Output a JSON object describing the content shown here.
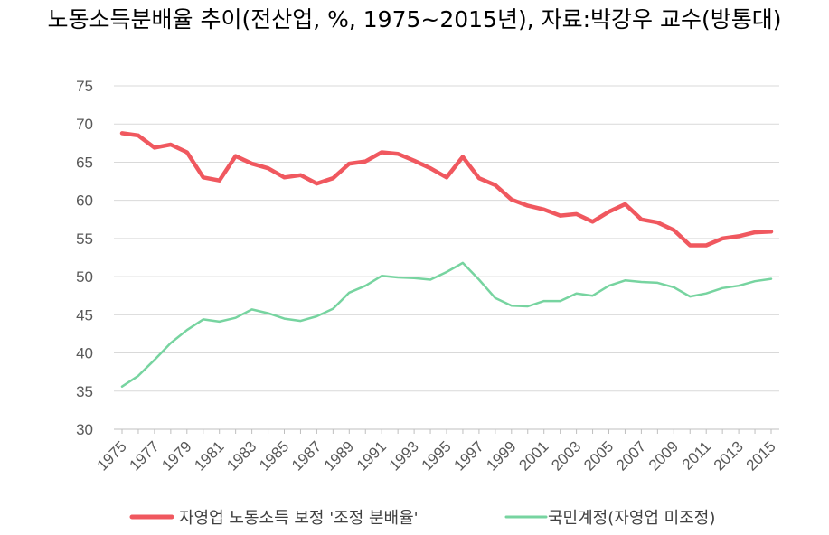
{
  "chart_data": {
    "type": "line",
    "title": "노동소득분배율 추이(전산업, %, 1975~2015년), 자료:박강우 교수(방통대)",
    "xlabel": "",
    "ylabel": "",
    "ylim": [
      30,
      75
    ],
    "yticks": [
      30,
      35,
      40,
      45,
      50,
      55,
      60,
      65,
      70,
      75
    ],
    "xtick_labels": [
      "1975",
      "1977",
      "1979",
      "1981",
      "1983",
      "1985",
      "1987",
      "1989",
      "1991",
      "1993",
      "1995",
      "1997",
      "1999",
      "2001",
      "2003",
      "2005",
      "2007",
      "2009",
      "2011",
      "2013",
      "2015"
    ],
    "grid": "horizontal",
    "legend": "bottom",
    "x": [
      1975,
      1976,
      1977,
      1978,
      1979,
      1980,
      1981,
      1982,
      1983,
      1984,
      1985,
      1986,
      1987,
      1988,
      1989,
      1990,
      1991,
      1992,
      1993,
      1994,
      1995,
      1996,
      1997,
      1998,
      1999,
      2000,
      2001,
      2002,
      2003,
      2004,
      2005,
      2006,
      2007,
      2008,
      2009,
      2010,
      2011,
      2012,
      2013,
      2014,
      2015
    ],
    "series": [
      {
        "name": "자영업 노동소득 보정 '조정 분배율'",
        "color": "#f0585f",
        "values": [
          68.8,
          68.5,
          66.9,
          67.3,
          66.3,
          63.0,
          62.6,
          65.8,
          64.8,
          64.2,
          63.0,
          63.3,
          62.2,
          62.9,
          64.8,
          65.1,
          66.3,
          66.1,
          65.2,
          64.2,
          63.0,
          65.7,
          62.9,
          62.0,
          60.1,
          59.3,
          58.8,
          58.0,
          58.2,
          57.2,
          58.5,
          59.5,
          57.5,
          57.1,
          56.1,
          54.1,
          54.1,
          55.0,
          55.3,
          55.8,
          55.9
        ]
      },
      {
        "name": "국민계정(자영업 미조정)",
        "color": "#77d4a0",
        "values": [
          35.6,
          37.0,
          39.1,
          41.3,
          43.0,
          44.4,
          44.1,
          44.6,
          45.7,
          45.2,
          44.5,
          44.2,
          44.8,
          45.8,
          47.9,
          48.8,
          50.1,
          49.9,
          49.8,
          49.6,
          50.6,
          51.8,
          49.6,
          47.2,
          46.2,
          46.1,
          46.8,
          46.8,
          47.8,
          47.5,
          48.8,
          49.5,
          49.3,
          49.2,
          48.6,
          47.4,
          47.8,
          48.5,
          48.8,
          49.4,
          49.7
        ]
      }
    ]
  }
}
